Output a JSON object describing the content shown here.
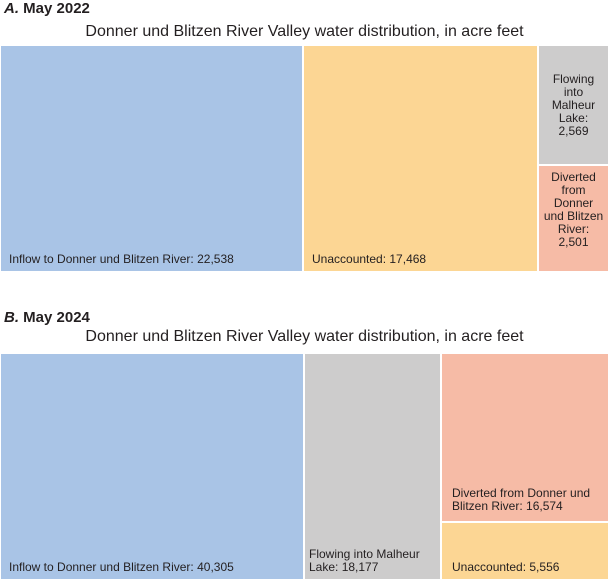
{
  "chart_data": [
    {
      "type": "treemap",
      "panel_letter": "A.",
      "panel_title": "May 2022",
      "title": "Donner und Blitzen River Valley water distribution, in acre feet",
      "items": [
        {
          "label": "Inflow to Donner und Blitzen River: 22,538",
          "value": 22538,
          "color": "#a9c4e6"
        },
        {
          "label": "Unaccounted: 17,468",
          "value": 17468,
          "color": "#fcd694"
        },
        {
          "label": "Flowing into Malheur Lake: 2,569",
          "value": 2569,
          "color": "#cdcccc"
        },
        {
          "label": "Diverted from Donner und Blitzen River: 2,501",
          "value": 2501,
          "color": "#f6bba6"
        }
      ]
    },
    {
      "type": "treemap",
      "panel_letter": "B.",
      "panel_title": "May 2024",
      "title": "Donner und Blitzen River Valley water distribution, in acre feet",
      "items": [
        {
          "label": "Inflow to Donner und Blitzen River: 40,305",
          "value": 40305,
          "color": "#a9c4e6"
        },
        {
          "label": "Flowing into Malheur Lake: 18,177",
          "value": 18177,
          "color": "#cdcccc"
        },
        {
          "label": "Diverted from Donner und Blitzen River: 16,574",
          "value": 16574,
          "color": "#f6bba6"
        },
        {
          "label": "Unaccounted: 5,556",
          "value": 5556,
          "color": "#fcd694"
        }
      ]
    }
  ]
}
